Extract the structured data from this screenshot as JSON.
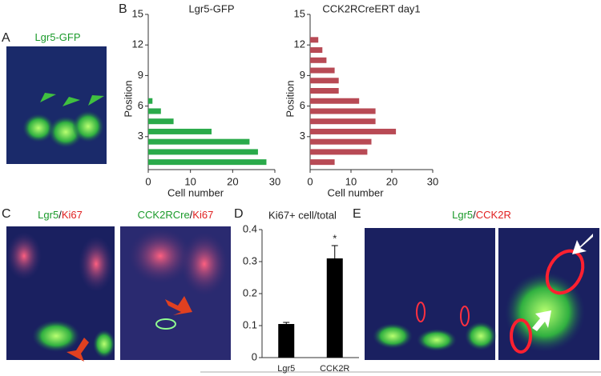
{
  "panel_labels": [
    "A",
    "B",
    "C",
    "D",
    "E"
  ],
  "image_labels": {
    "a": [
      {
        "text": "Lgr5-GFP",
        "color": "#1a9a2a"
      }
    ],
    "c_left": [
      {
        "text": "Lgr5",
        "color": "#1a9a2a"
      },
      {
        "text": "/",
        "color": "#111111"
      },
      {
        "text": "Ki67",
        "color": "#e02020"
      }
    ],
    "c_right": [
      {
        "text": "CCK2RCre",
        "color": "#1a9a2a"
      },
      {
        "text": "/",
        "color": "#111111"
      },
      {
        "text": "Ki67",
        "color": "#e02020"
      }
    ],
    "e": [
      {
        "text": "Lgr5",
        "color": "#1a9a2a"
      },
      {
        "text": "/",
        "color": "#111111"
      },
      {
        "text": "CCK2R",
        "color": "#e02020"
      }
    ]
  },
  "chart_data": [
    {
      "type": "bar",
      "orientation": "horizontal",
      "title": "Lgr5-GFP",
      "title_color": "#1a9a2a",
      "x_label": "Cell number",
      "y_label": "Position",
      "color": "#2aaa4a",
      "y": [
        0.5,
        1.5,
        2.5,
        3.5,
        4.5,
        5.5,
        6.5
      ],
      "values": [
        28,
        26,
        24,
        15,
        6,
        3,
        1
      ],
      "xlim": [
        0,
        30
      ],
      "xticks": [
        0,
        10,
        20,
        30
      ],
      "ylim": [
        0,
        15
      ],
      "yticks": [
        3,
        6,
        9,
        12,
        15
      ]
    },
    {
      "type": "bar",
      "orientation": "horizontal",
      "title": "CCK2RCreERT day1",
      "title_color": "#d0402a",
      "x_label": "Cell number",
      "y_label": "Position",
      "color": "#b84a55",
      "y": [
        0.5,
        1.5,
        2.5,
        3.5,
        4.5,
        5.5,
        6.5,
        7.5,
        8.5,
        9.5,
        10.5,
        11.5,
        12.5
      ],
      "values": [
        6,
        14,
        15,
        21,
        16,
        16,
        12,
        7,
        7,
        6,
        4,
        3,
        2
      ],
      "xlim": [
        0,
        30
      ],
      "xticks": [
        0,
        10,
        20,
        30
      ],
      "ylim": [
        0,
        15
      ],
      "yticks": [
        3,
        6,
        9,
        12,
        15
      ]
    },
    {
      "type": "bar",
      "orientation": "vertical",
      "title": "Ki67+ cell/total",
      "color": "#000000",
      "categories": [
        "Lgr5",
        "CCK2R"
      ],
      "values": [
        0.105,
        0.31
      ],
      "errors": [
        0.005,
        0.04
      ],
      "annotation": "*",
      "ylim": [
        0,
        0.4
      ],
      "yticks": [
        0,
        0.1,
        0.2,
        0.3,
        0.4
      ]
    }
  ]
}
